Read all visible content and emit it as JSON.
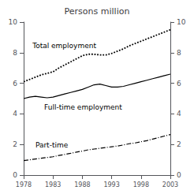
{
  "chart_data": {
    "type": "line",
    "title": "Persons million",
    "x": [
      1978,
      1979,
      1980,
      1981,
      1982,
      1983,
      1984,
      1985,
      1986,
      1987,
      1988,
      1989,
      1990,
      1991,
      1992,
      1993,
      1994,
      1995,
      1996,
      1997,
      1998,
      1999,
      2000,
      2001,
      2002,
      2003
    ],
    "series": [
      {
        "color": "#000000",
        "line_style": "dotted",
        "values": [
          6.1,
          6.25,
          6.4,
          6.55,
          6.65,
          6.75,
          7.0,
          7.2,
          7.4,
          7.6,
          7.8,
          7.9,
          7.9,
          7.85,
          7.85,
          7.95,
          8.1,
          8.25,
          8.45,
          8.6,
          8.75,
          8.9,
          9.05,
          9.2,
          9.35,
          9.5
        ]
      },
      {
        "color": "#000000",
        "line_style": "solid",
        "values": [
          5.0,
          5.1,
          5.15,
          5.1,
          5.05,
          5.1,
          5.2,
          5.3,
          5.4,
          5.5,
          5.6,
          5.75,
          5.9,
          5.95,
          5.85,
          5.75,
          5.75,
          5.8,
          5.9,
          6.0,
          6.1,
          6.2,
          6.3,
          6.4,
          6.5,
          6.6
        ]
      },
      {
        "color": "#000000",
        "line_style": "dashdot",
        "values": [
          0.95,
          1.0,
          1.05,
          1.1,
          1.15,
          1.2,
          1.28,
          1.35,
          1.42,
          1.5,
          1.57,
          1.65,
          1.7,
          1.75,
          1.8,
          1.85,
          1.9,
          1.97,
          2.05,
          2.1,
          2.18,
          2.25,
          2.35,
          2.45,
          2.55,
          2.65
        ]
      }
    ],
    "annotations": [
      {
        "text": "Total employment",
        "x": 1979.5,
        "y": 8.45
      },
      {
        "text": "Full-time employment",
        "x": 1981.5,
        "y": 4.45
      },
      {
        "text": "Part-time",
        "x": 1980.0,
        "y": 1.95
      }
    ],
    "xlim": [
      1978,
      2003
    ],
    "xticks": [
      1978,
      1983,
      1988,
      1993,
      1998,
      2003
    ],
    "ylim": [
      0,
      10
    ],
    "yticks": [
      0,
      2,
      4,
      6,
      8,
      10
    ],
    "y2lim": [
      0,
      10
    ],
    "y2ticks": [
      0,
      2,
      4,
      6,
      8,
      10
    ],
    "grid": false
  }
}
